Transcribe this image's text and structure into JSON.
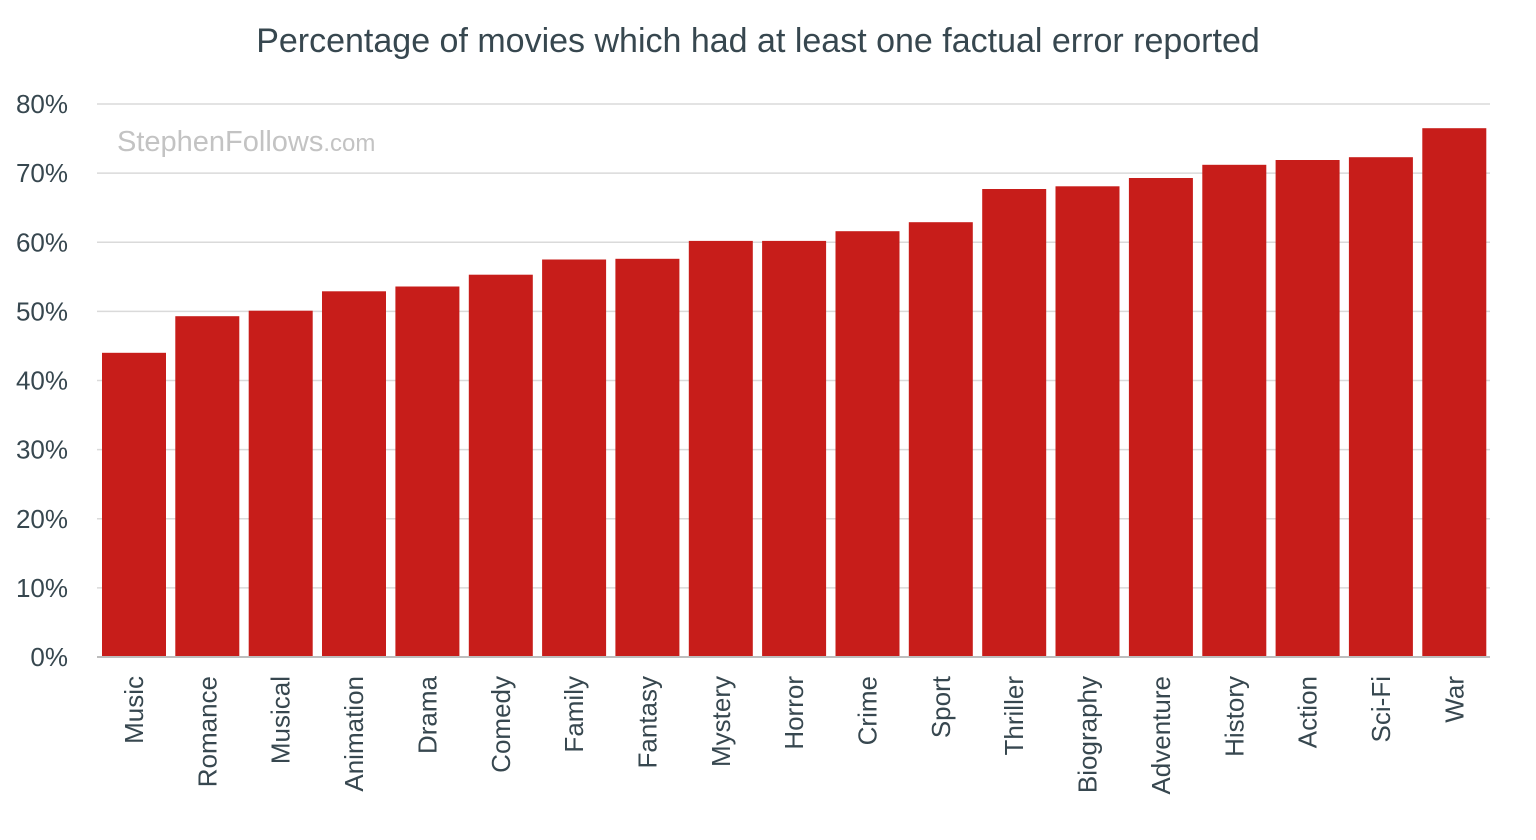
{
  "watermark": {
    "main": "StephenFollows",
    "suffix": ".com"
  },
  "chart_data": {
    "type": "bar",
    "title": "Percentage of movies which had at least one factual error reported",
    "xlabel": "",
    "ylabel": "",
    "ylim": [
      0,
      80
    ],
    "y_ticks": [
      "0%",
      "10%",
      "20%",
      "30%",
      "40%",
      "50%",
      "60%",
      "70%",
      "80%"
    ],
    "grid": true,
    "bar_color": "#c71d1a",
    "categories": [
      "Music",
      "Romance",
      "Musical",
      "Animation",
      "Drama",
      "Comedy",
      "Family",
      "Fantasy",
      "Mystery",
      "Horror",
      "Crime",
      "Sport",
      "Thriller",
      "Biography",
      "Adventure",
      "History",
      "Action",
      "Sci-Fi",
      "War"
    ],
    "values": [
      44.0,
      49.3,
      50.1,
      52.9,
      53.6,
      55.3,
      57.5,
      57.6,
      60.2,
      60.2,
      61.6,
      62.9,
      67.7,
      68.1,
      69.3,
      71.2,
      71.9,
      72.3,
      76.5
    ]
  }
}
